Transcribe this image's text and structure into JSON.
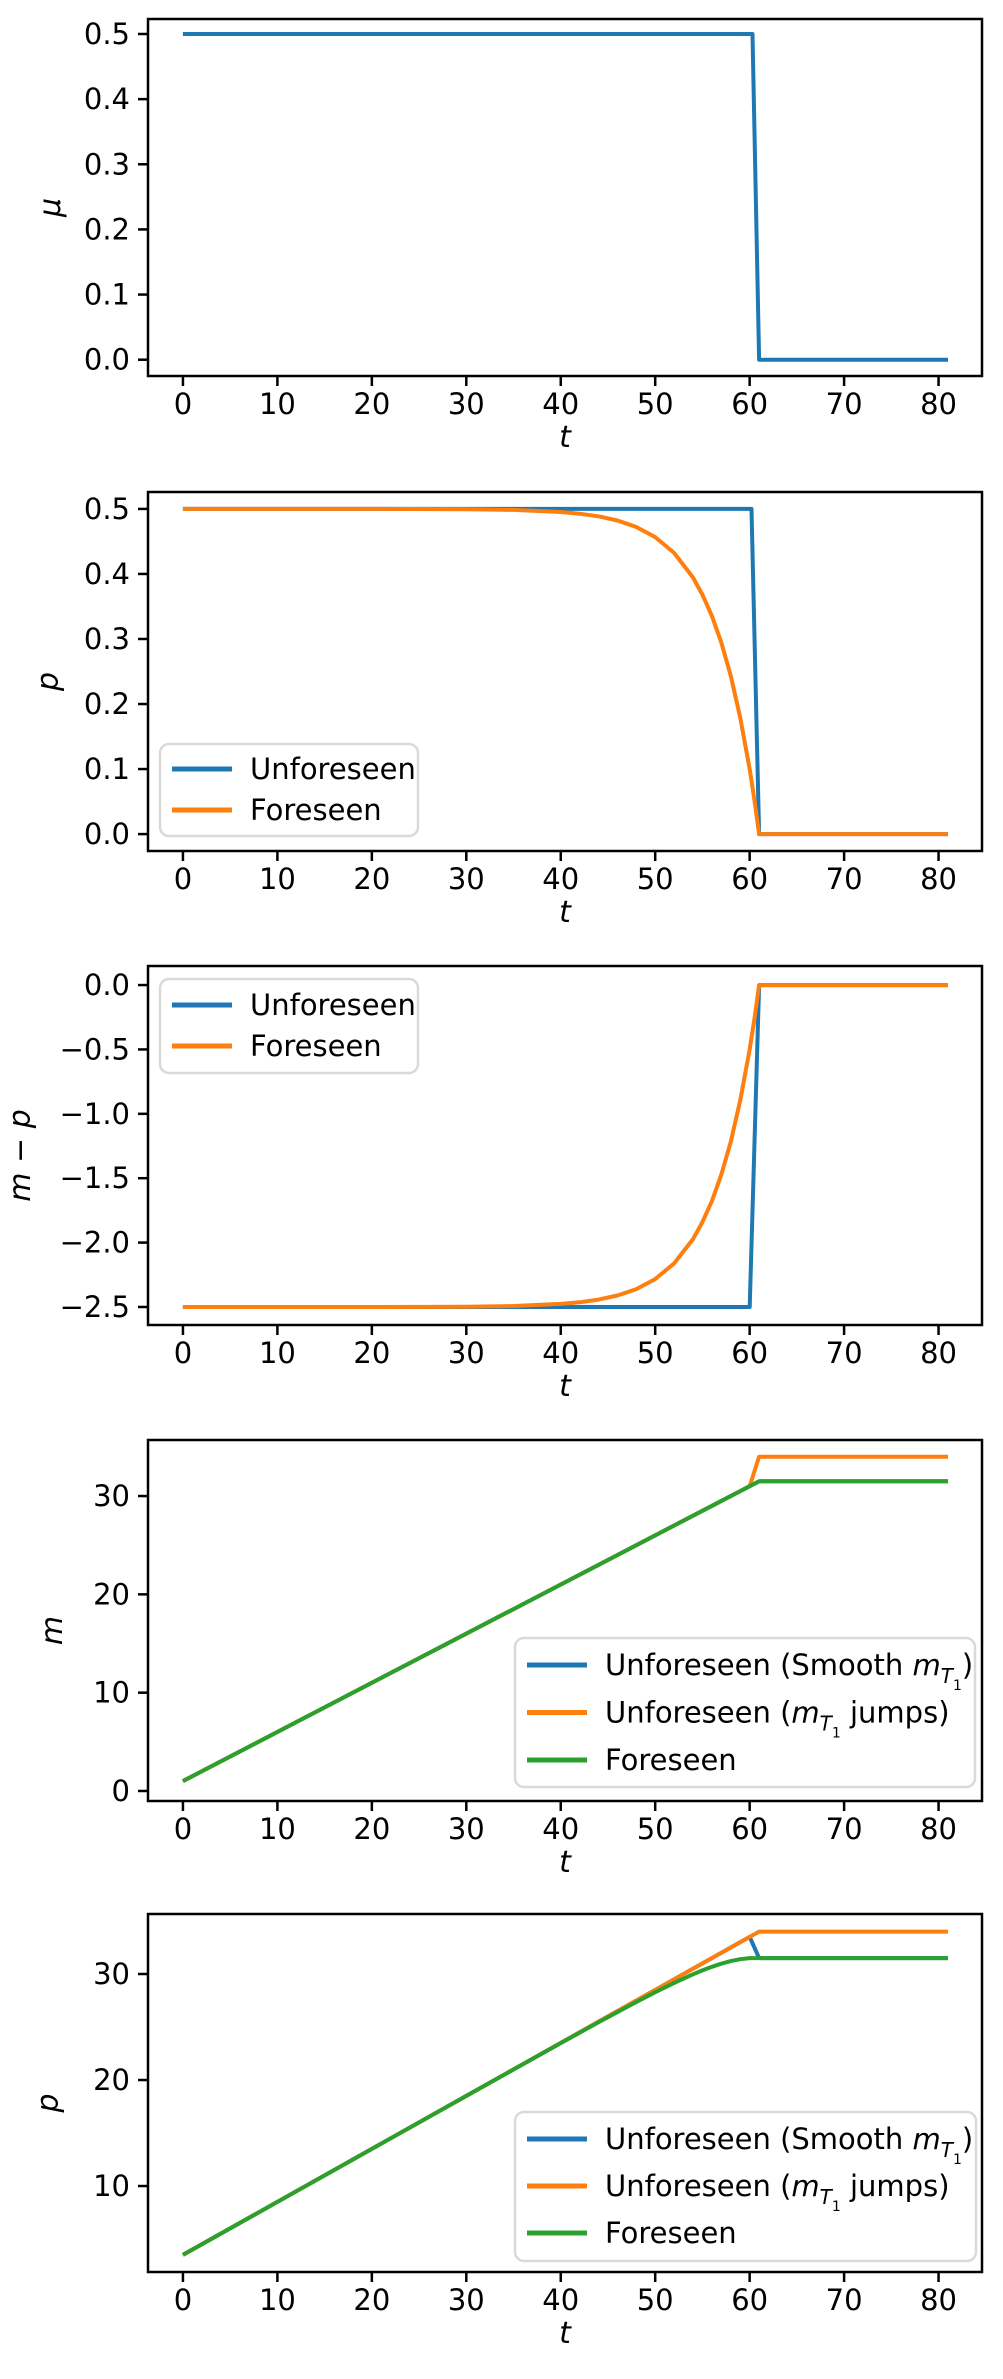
{
  "figure": {
    "background": "#ffffff",
    "text_color": "#000000",
    "legend_border_color": "#d9d9d9",
    "series_colors": {
      "blue": "#1f77b4",
      "orange": "#ff7f0e",
      "green": "#2ca02c"
    }
  },
  "chart_data": [
    {
      "type": "line",
      "title": "",
      "xlabel": "t",
      "ylabel": "μ",
      "xlim": [
        -3.7,
        84.6
      ],
      "ylim": [
        -0.025,
        0.523
      ],
      "grid": false,
      "xticks": [
        0,
        10,
        20,
        30,
        40,
        50,
        60,
        70,
        80
      ],
      "yticks": {
        "values": [
          0.0,
          0.1,
          0.2,
          0.3,
          0.4,
          0.5
        ],
        "labels": [
          "0.0",
          "0.1",
          "0.2",
          "0.3",
          "0.4",
          "0.5"
        ]
      },
      "series": [
        {
          "name": "mu",
          "color": "#1f77b4",
          "points": [
            [
              0,
              0.5
            ],
            [
              60.3,
              0.5
            ],
            [
              61,
              0
            ],
            [
              81,
              0
            ]
          ]
        }
      ],
      "legend": null
    },
    {
      "type": "line",
      "title": "",
      "xlabel": "t",
      "ylabel": "p",
      "xlim": [
        -3.7,
        84.6
      ],
      "ylim": [
        -0.026,
        0.526
      ],
      "grid": false,
      "xticks": [
        0,
        10,
        20,
        30,
        40,
        50,
        60,
        70,
        80
      ],
      "yticks": {
        "values": [
          0.0,
          0.1,
          0.2,
          0.3,
          0.4,
          0.5
        ],
        "labels": [
          "0.0",
          "0.1",
          "0.2",
          "0.3",
          "0.4",
          "0.5"
        ]
      },
      "series": [
        {
          "name": "Unforeseen",
          "color": "#1f77b4",
          "points": [
            [
              0,
              0.5
            ],
            [
              60.2,
              0.5
            ],
            [
              61,
              0
            ],
            [
              81,
              0
            ]
          ]
        },
        {
          "name": "Foreseen",
          "color": "#ff7f0e",
          "points": [
            [
              0,
              0.5
            ],
            [
              10,
              0.5
            ],
            [
              20,
              0.5
            ],
            [
              30,
              0.4995
            ],
            [
              35,
              0.4985
            ],
            [
              40,
              0.4953
            ],
            [
              42,
              0.4927
            ],
            [
              44,
              0.4886
            ],
            [
              46,
              0.4822
            ],
            [
              48,
              0.4722
            ],
            [
              50,
              0.4567
            ],
            [
              52,
              0.4323
            ],
            [
              54,
              0.3946
            ],
            [
              55,
              0.3682
            ],
            [
              56,
              0.3355
            ],
            [
              57,
              0.2945
            ],
            [
              58,
              0.2433
            ],
            [
              59,
              0.1793
            ],
            [
              60,
              0.0997
            ],
            [
              60.5,
              0.0527
            ],
            [
              61,
              0
            ],
            [
              81,
              0
            ]
          ]
        }
      ],
      "legend": {
        "location": "lower left",
        "entries": [
          {
            "label": "Unforeseen",
            "color": "#1f77b4",
            "rich": [
              {
                "t": "Unforeseen",
                "s": "n"
              }
            ]
          },
          {
            "label": "Foreseen",
            "color": "#ff7f0e",
            "rich": [
              {
                "t": "Foreseen",
                "s": "n"
              }
            ]
          }
        ]
      }
    },
    {
      "type": "line",
      "title": "",
      "xlabel": "t",
      "ylabel": "m − p",
      "xlim": [
        -3.7,
        84.6
      ],
      "ylim": [
        -2.64,
        0.148
      ],
      "grid": false,
      "xticks": [
        0,
        10,
        20,
        30,
        40,
        50,
        60,
        70,
        80
      ],
      "yticks": {
        "values": [
          0.0,
          -0.5,
          -1.0,
          -1.5,
          -2.0,
          -2.5
        ],
        "labels": [
          "0.0",
          "−0.5",
          "−1.0",
          "−1.5",
          "−2.0",
          "−2.5"
        ]
      },
      "series": [
        {
          "name": "Unforeseen",
          "color": "#1f77b4",
          "points": [
            [
              0,
              -2.5
            ],
            [
              60,
              -2.5
            ],
            [
              61,
              0
            ],
            [
              81,
              0
            ]
          ]
        },
        {
          "name": "Foreseen",
          "color": "#ff7f0e",
          "points": [
            [
              0,
              -2.5
            ],
            [
              10,
              -2.5
            ],
            [
              20,
              -2.5
            ],
            [
              30,
              -2.4975
            ],
            [
              35,
              -2.4925
            ],
            [
              40,
              -2.4765
            ],
            [
              42,
              -2.4635
            ],
            [
              44,
              -2.443
            ],
            [
              46,
              -2.411
            ],
            [
              48,
              -2.361
            ],
            [
              50,
              -2.2835
            ],
            [
              52,
              -2.1615
            ],
            [
              54,
              -1.973
            ],
            [
              55,
              -1.841
            ],
            [
              56,
              -1.6775
            ],
            [
              57,
              -1.4725
            ],
            [
              58,
              -1.2165
            ],
            [
              59,
              -0.8965
            ],
            [
              60,
              -0.4985
            ],
            [
              60.5,
              -0.2635
            ],
            [
              61,
              0
            ],
            [
              81,
              0
            ]
          ]
        }
      ],
      "legend": {
        "location": "upper left",
        "entries": [
          {
            "label": "Unforeseen",
            "color": "#1f77b4",
            "rich": [
              {
                "t": "Unforeseen",
                "s": "n"
              }
            ]
          },
          {
            "label": "Foreseen",
            "color": "#ff7f0e",
            "rich": [
              {
                "t": "Foreseen",
                "s": "n"
              }
            ]
          }
        ]
      }
    },
    {
      "type": "line",
      "title": "",
      "xlabel": "t",
      "ylabel": "m",
      "xlim": [
        -3.7,
        84.6
      ],
      "ylim": [
        -1.02,
        35.7
      ],
      "grid": false,
      "xticks": [
        0,
        10,
        20,
        30,
        40,
        50,
        60,
        70,
        80
      ],
      "yticks": {
        "values": [
          0,
          10,
          20,
          30
        ],
        "labels": [
          "0",
          "10",
          "20",
          "30"
        ]
      },
      "series": [
        {
          "name": "Unforeseen (Smooth m_T1)",
          "color": "#1f77b4",
          "points": [
            [
              0,
              1
            ],
            [
              61,
              31.5
            ],
            [
              81,
              31.5
            ]
          ]
        },
        {
          "name": "Unforeseen (m_T1 jumps)",
          "color": "#ff7f0e",
          "points": [
            [
              0,
              1
            ],
            [
              60,
              31
            ],
            [
              61,
              34
            ],
            [
              81,
              34
            ]
          ]
        },
        {
          "name": "Foreseen",
          "color": "#2ca02c",
          "points": [
            [
              0,
              1
            ],
            [
              61,
              31.5
            ],
            [
              81,
              31.5
            ]
          ]
        }
      ],
      "legend": {
        "location": "lower right",
        "entries": [
          {
            "label": "Unforeseen (Smooth m_T1)",
            "color": "#1f77b4",
            "rich": [
              {
                "t": "Unforeseen (Smooth ",
                "s": "n"
              },
              {
                "t": "m",
                "s": "i"
              },
              {
                "t": "T",
                "s": "sub"
              },
              {
                "t": "1",
                "s": "subsub"
              },
              {
                "t": ")",
                "s": "n"
              }
            ]
          },
          {
            "label": "Unforeseen (m_T1 jumps)",
            "color": "#ff7f0e",
            "rich": [
              {
                "t": "Unforeseen (",
                "s": "n"
              },
              {
                "t": "m",
                "s": "i"
              },
              {
                "t": "T",
                "s": "sub"
              },
              {
                "t": "1",
                "s": "subsub"
              },
              {
                "t": " jumps)",
                "s": "n"
              }
            ]
          },
          {
            "label": "Foreseen",
            "color": "#2ca02c",
            "rich": [
              {
                "t": "Foreseen",
                "s": "n"
              }
            ]
          }
        ]
      }
    },
    {
      "type": "line",
      "title": "",
      "xlabel": "t",
      "ylabel": "p",
      "xlim": [
        -3.7,
        84.6
      ],
      "ylim": [
        1.89,
        35.66
      ],
      "grid": false,
      "xticks": [
        0,
        10,
        20,
        30,
        40,
        50,
        60,
        70,
        80
      ],
      "yticks": {
        "values": [
          10,
          20,
          30
        ],
        "labels": [
          "10",
          "20",
          "30"
        ]
      },
      "series": [
        {
          "name": "Unforeseen (Smooth m_T1)",
          "color": "#1f77b4",
          "points": [
            [
              0,
              3.5
            ],
            [
              60,
              33.5
            ],
            [
              61,
              31.5
            ],
            [
              81,
              31.5
            ]
          ]
        },
        {
          "name": "Unforeseen (m_T1 jumps)",
          "color": "#ff7f0e",
          "points": [
            [
              0,
              3.5
            ],
            [
              61,
              34
            ],
            [
              81,
              34
            ]
          ]
        },
        {
          "name": "Foreseen",
          "color": "#2ca02c",
          "points": [
            [
              0,
              3.5
            ],
            [
              10,
              8.5
            ],
            [
              20,
              13.5
            ],
            [
              30,
              18.5
            ],
            [
              35,
              20.99
            ],
            [
              40,
              23.48
            ],
            [
              42,
              24.46
            ],
            [
              44,
              25.44
            ],
            [
              46,
              26.41
            ],
            [
              48,
              27.36
            ],
            [
              50,
              28.28
            ],
            [
              52,
              29.16
            ],
            [
              54,
              29.97
            ],
            [
              55,
              30.34
            ],
            [
              56,
              30.68
            ],
            [
              57,
              30.97
            ],
            [
              58,
              31.22
            ],
            [
              59,
              31.4
            ],
            [
              60,
              31.5
            ],
            [
              61,
              31.5
            ],
            [
              81,
              31.5
            ]
          ]
        }
      ],
      "legend": {
        "location": "lower right",
        "entries": [
          {
            "label": "Unforeseen (Smooth m_T1)",
            "color": "#1f77b4",
            "rich": [
              {
                "t": "Unforeseen (Smooth ",
                "s": "n"
              },
              {
                "t": "m",
                "s": "i"
              },
              {
                "t": "T",
                "s": "sub"
              },
              {
                "t": "1",
                "s": "subsub"
              },
              {
                "t": ")",
                "s": "n"
              }
            ]
          },
          {
            "label": "Unforeseen (m_T1 jumps)",
            "color": "#ff7f0e",
            "rich": [
              {
                "t": "Unforeseen (",
                "s": "n"
              },
              {
                "t": "m",
                "s": "i"
              },
              {
                "t": "T",
                "s": "sub"
              },
              {
                "t": "1",
                "s": "subsub"
              },
              {
                "t": " jumps)",
                "s": "n"
              }
            ]
          },
          {
            "label": "Foreseen",
            "color": "#2ca02c",
            "rich": [
              {
                "t": "Foreseen",
                "s": "n"
              }
            ]
          }
        ]
      }
    }
  ]
}
